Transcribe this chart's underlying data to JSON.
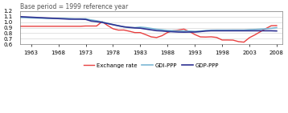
{
  "title": "Base period = 1999 reference year",
  "xlim": [
    1961,
    2009
  ],
  "ylim": [
    0.6,
    1.2
  ],
  "yticks": [
    0.6,
    0.7,
    0.8,
    0.9,
    1.0,
    1.1,
    1.2
  ],
  "xticks": [
    1963,
    1968,
    1973,
    1978,
    1983,
    1988,
    1993,
    1998,
    2003,
    2008
  ],
  "gdp_ppp_color": "#2E3192",
  "gdi_ppp_color": "#7BB8D4",
  "exchange_color": "#E84040",
  "years": [
    1961,
    1962,
    1963,
    1964,
    1965,
    1966,
    1967,
    1968,
    1969,
    1970,
    1971,
    1972,
    1973,
    1974,
    1975,
    1976,
    1977,
    1978,
    1979,
    1980,
    1981,
    1982,
    1983,
    1984,
    1985,
    1986,
    1987,
    1988,
    1989,
    1990,
    1991,
    1992,
    1993,
    1994,
    1995,
    1996,
    1997,
    1998,
    1999,
    2000,
    2001,
    2002,
    2003,
    2004,
    2005,
    2006,
    2007,
    2008
  ],
  "gdp_ppp": [
    1.1,
    1.095,
    1.09,
    1.085,
    1.08,
    1.075,
    1.07,
    1.065,
    1.06,
    1.055,
    1.055,
    1.055,
    1.05,
    1.02,
    1.01,
    0.995,
    0.975,
    0.955,
    0.935,
    0.915,
    0.905,
    0.895,
    0.89,
    0.875,
    0.86,
    0.845,
    0.84,
    0.83,
    0.825,
    0.82,
    0.818,
    0.82,
    0.82,
    0.828,
    0.838,
    0.843,
    0.843,
    0.843,
    0.843,
    0.843,
    0.843,
    0.843,
    0.843,
    0.843,
    0.843,
    0.843,
    0.843,
    0.84
  ],
  "gdi_ppp": [
    1.085,
    1.082,
    1.078,
    1.075,
    1.072,
    1.068,
    1.068,
    1.068,
    1.068,
    1.065,
    1.06,
    1.06,
    1.06,
    1.04,
    1.025,
    1.005,
    0.98,
    0.955,
    0.932,
    0.915,
    0.9,
    0.9,
    0.91,
    0.9,
    0.885,
    0.87,
    0.86,
    0.85,
    0.845,
    0.842,
    0.838,
    0.838,
    0.833,
    0.838,
    0.848,
    0.853,
    0.855,
    0.855,
    0.855,
    0.856,
    0.856,
    0.856,
    0.862,
    0.866,
    0.872,
    0.878,
    0.888,
    0.9
  ],
  "exchange": [
    0.925,
    0.925,
    0.925,
    0.925,
    0.925,
    0.925,
    0.925,
    0.925,
    0.925,
    0.925,
    0.925,
    0.925,
    0.93,
    0.93,
    0.93,
    1.01,
    0.94,
    0.88,
    0.855,
    0.857,
    0.835,
    0.81,
    0.81,
    0.773,
    0.732,
    0.72,
    0.754,
    0.812,
    0.845,
    0.857,
    0.873,
    0.83,
    0.775,
    0.732,
    0.729,
    0.733,
    0.722,
    0.675,
    0.675,
    0.673,
    0.646,
    0.636,
    0.717,
    0.768,
    0.825,
    0.882,
    0.935,
    0.938
  ]
}
